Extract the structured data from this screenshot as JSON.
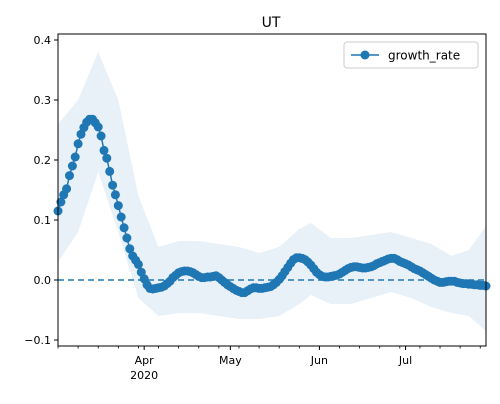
{
  "chart_data": {
    "type": "line",
    "title": "UT",
    "xlabel": "",
    "ylabel": "",
    "x_range": [
      "2020-03-02",
      "2020-07-29"
    ],
    "ylim": [
      -0.11,
      0.41
    ],
    "y_ticks": [
      -0.1,
      0.0,
      0.1,
      0.2,
      0.3,
      0.4
    ],
    "y_tick_labels": [
      "−0.1",
      "0.0",
      "0.1",
      "0.2",
      "0.3",
      "0.4"
    ],
    "x_ticks": [
      {
        "date": "2020-04-01",
        "label": "Apr",
        "sublabel": "2020"
      },
      {
        "date": "2020-05-01",
        "label": "May",
        "sublabel": ""
      },
      {
        "date": "2020-06-01",
        "label": "Jun",
        "sublabel": ""
      },
      {
        "date": "2020-07-01",
        "label": "Jul",
        "sublabel": ""
      }
    ],
    "grid": false,
    "legend": {
      "position": "top-right",
      "entries": [
        "growth_rate"
      ]
    },
    "reference_line": {
      "y": 0.0,
      "style": "dashed"
    },
    "colors": {
      "series": "#1f77b4",
      "band": "#dce8f5"
    },
    "series": [
      {
        "name": "growth_rate",
        "x": [
          "2020-03-02",
          "2020-03-03",
          "2020-03-04",
          "2020-03-05",
          "2020-03-06",
          "2020-03-07",
          "2020-03-08",
          "2020-03-09",
          "2020-03-10",
          "2020-03-11",
          "2020-03-12",
          "2020-03-13",
          "2020-03-14",
          "2020-03-15",
          "2020-03-16",
          "2020-03-17",
          "2020-03-18",
          "2020-03-19",
          "2020-03-20",
          "2020-03-21",
          "2020-03-22",
          "2020-03-23",
          "2020-03-24",
          "2020-03-25",
          "2020-03-26",
          "2020-03-27",
          "2020-03-28",
          "2020-03-29",
          "2020-03-30",
          "2020-03-31",
          "2020-04-01",
          "2020-04-02",
          "2020-04-03",
          "2020-04-04",
          "2020-04-05",
          "2020-04-06",
          "2020-04-07",
          "2020-04-08",
          "2020-04-09",
          "2020-04-10",
          "2020-04-11",
          "2020-04-12",
          "2020-04-13",
          "2020-04-14",
          "2020-04-15",
          "2020-04-16",
          "2020-04-17",
          "2020-04-18",
          "2020-04-19",
          "2020-04-20",
          "2020-04-21",
          "2020-04-22",
          "2020-04-23",
          "2020-04-24",
          "2020-04-25",
          "2020-04-26",
          "2020-04-27",
          "2020-04-28",
          "2020-04-29",
          "2020-04-30",
          "2020-05-01",
          "2020-05-02",
          "2020-05-03",
          "2020-05-04",
          "2020-05-05",
          "2020-05-06",
          "2020-05-07",
          "2020-05-08",
          "2020-05-09",
          "2020-05-10",
          "2020-05-11",
          "2020-05-12",
          "2020-05-13",
          "2020-05-14",
          "2020-05-15",
          "2020-05-16",
          "2020-05-17",
          "2020-05-18",
          "2020-05-19",
          "2020-05-20",
          "2020-05-21",
          "2020-05-22",
          "2020-05-23",
          "2020-05-24",
          "2020-05-25",
          "2020-05-26",
          "2020-05-27",
          "2020-05-28",
          "2020-05-29",
          "2020-05-30",
          "2020-05-31",
          "2020-06-01",
          "2020-06-02",
          "2020-06-03",
          "2020-06-04",
          "2020-06-05",
          "2020-06-06",
          "2020-06-07",
          "2020-06-08",
          "2020-06-09",
          "2020-06-10",
          "2020-06-11",
          "2020-06-12",
          "2020-06-13",
          "2020-06-14",
          "2020-06-15",
          "2020-06-16",
          "2020-06-17",
          "2020-06-18",
          "2020-06-19",
          "2020-06-20",
          "2020-06-21",
          "2020-06-22",
          "2020-06-23",
          "2020-06-24",
          "2020-06-25",
          "2020-06-26",
          "2020-06-27",
          "2020-06-28",
          "2020-06-29",
          "2020-06-30",
          "2020-07-01",
          "2020-07-02",
          "2020-07-03",
          "2020-07-04",
          "2020-07-05",
          "2020-07-06",
          "2020-07-07",
          "2020-07-08",
          "2020-07-09",
          "2020-07-10",
          "2020-07-11",
          "2020-07-12",
          "2020-07-13",
          "2020-07-14",
          "2020-07-15",
          "2020-07-16",
          "2020-07-17",
          "2020-07-18",
          "2020-07-19",
          "2020-07-20",
          "2020-07-21",
          "2020-07-22",
          "2020-07-23",
          "2020-07-24",
          "2020-07-25",
          "2020-07-26",
          "2020-07-27",
          "2020-07-28",
          "2020-07-29"
        ],
        "y": [
          0.115,
          0.13,
          0.142,
          0.152,
          0.174,
          0.19,
          0.205,
          0.227,
          0.243,
          0.254,
          0.263,
          0.268,
          0.268,
          0.262,
          0.255,
          0.24,
          0.216,
          0.203,
          0.181,
          0.158,
          0.142,
          0.124,
          0.105,
          0.087,
          0.07,
          0.052,
          0.04,
          0.033,
          0.026,
          0.013,
          0.002,
          -0.008,
          -0.014,
          -0.015,
          -0.014,
          -0.013,
          -0.012,
          -0.01,
          -0.006,
          -0.002,
          0.004,
          0.008,
          0.012,
          0.014,
          0.015,
          0.015,
          0.014,
          0.012,
          0.009,
          0.006,
          0.004,
          0.004,
          0.005,
          0.005,
          0.006,
          0.007,
          0.004,
          0.0,
          -0.004,
          -0.008,
          -0.011,
          -0.014,
          -0.017,
          -0.019,
          -0.021,
          -0.021,
          -0.018,
          -0.015,
          -0.013,
          -0.013,
          -0.014,
          -0.014,
          -0.013,
          -0.012,
          -0.011,
          -0.008,
          -0.004,
          0.001,
          0.007,
          0.014,
          0.021,
          0.028,
          0.034,
          0.037,
          0.037,
          0.036,
          0.034,
          0.03,
          0.025,
          0.019,
          0.013,
          0.009,
          0.006,
          0.005,
          0.005,
          0.006,
          0.007,
          0.008,
          0.01,
          0.013,
          0.016,
          0.019,
          0.021,
          0.022,
          0.022,
          0.021,
          0.02,
          0.02,
          0.021,
          0.022,
          0.024,
          0.027,
          0.029,
          0.031,
          0.033,
          0.035,
          0.036,
          0.036,
          0.034,
          0.031,
          0.029,
          0.027,
          0.025,
          0.022,
          0.019,
          0.017,
          0.015,
          0.012,
          0.009,
          0.006,
          0.003,
          0.0,
          -0.002,
          -0.004,
          -0.004,
          -0.003,
          -0.002,
          -0.002,
          -0.002,
          -0.004,
          -0.005,
          -0.006,
          -0.006,
          -0.007,
          -0.007,
          -0.008,
          -0.008,
          -0.009,
          -0.009,
          -0.01
        ],
        "band_x": [
          "2020-03-02",
          "2020-03-09",
          "2020-03-16",
          "2020-03-23",
          "2020-03-30",
          "2020-04-06",
          "2020-04-13",
          "2020-04-20",
          "2020-04-27",
          "2020-05-04",
          "2020-05-11",
          "2020-05-18",
          "2020-05-25",
          "2020-05-29",
          "2020-06-05",
          "2020-06-12",
          "2020-06-19",
          "2020-06-26",
          "2020-07-03",
          "2020-07-10",
          "2020-07-17",
          "2020-07-23",
          "2020-07-29"
        ],
        "band_upper": [
          0.26,
          0.3,
          0.38,
          0.3,
          0.14,
          0.055,
          0.065,
          0.065,
          0.06,
          0.055,
          0.045,
          0.055,
          0.085,
          0.095,
          0.07,
          0.07,
          0.075,
          0.08,
          0.07,
          0.06,
          0.04,
          0.05,
          0.09
        ],
        "band_lower": [
          0.03,
          0.08,
          0.18,
          0.08,
          -0.03,
          -0.06,
          -0.055,
          -0.055,
          -0.06,
          -0.065,
          -0.065,
          -0.06,
          -0.04,
          -0.025,
          -0.04,
          -0.04,
          -0.03,
          -0.02,
          -0.03,
          -0.045,
          -0.055,
          -0.06,
          -0.085
        ]
      }
    ]
  }
}
